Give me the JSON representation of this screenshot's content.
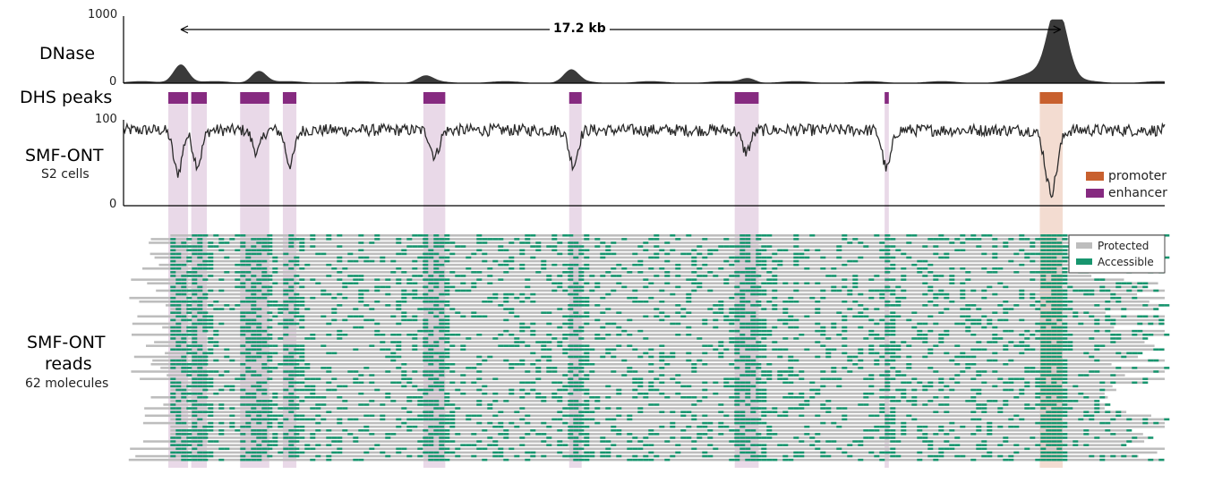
{
  "chart_data": {
    "type": "track-figure",
    "span_label": "17.2 kb",
    "tracks": {
      "dnase": {
        "label": "DNase",
        "ylim": [
          0,
          1000
        ],
        "tick_labels": [
          "1000",
          "0"
        ],
        "color": "#3a3a3a",
        "peaks": [
          {
            "x": 0.055,
            "h": 0.28
          },
          {
            "x": 0.13,
            "h": 0.18
          },
          {
            "x": 0.29,
            "h": 0.09
          },
          {
            "x": 0.43,
            "h": 0.18
          },
          {
            "x": 0.6,
            "h": 0.07
          },
          {
            "x": 0.89,
            "h": 0.25
          },
          {
            "x": 0.895,
            "h": 0.18
          },
          {
            "x": 0.9,
            "h": 0.7
          }
        ]
      },
      "dhs": {
        "label": "DHS peaks",
        "peaks": [
          {
            "start": 0.043,
            "end": 0.062,
            "type": "enhancer"
          },
          {
            "start": 0.065,
            "end": 0.08,
            "type": "enhancer"
          },
          {
            "start": 0.112,
            "end": 0.14,
            "type": "enhancer"
          },
          {
            "start": 0.153,
            "end": 0.166,
            "type": "enhancer"
          },
          {
            "start": 0.288,
            "end": 0.309,
            "type": "enhancer"
          },
          {
            "start": 0.428,
            "end": 0.44,
            "type": "enhancer"
          },
          {
            "start": 0.587,
            "end": 0.61,
            "type": "enhancer"
          },
          {
            "start": 0.731,
            "end": 0.735,
            "type": "enhancer"
          },
          {
            "start": 0.88,
            "end": 0.902,
            "type": "promoter"
          }
        ]
      },
      "smf": {
        "label": "SMF-ONT",
        "sublabel": "S2 cells",
        "ylim": [
          0,
          100
        ],
        "tick_labels": [
          "100",
          "0"
        ],
        "baseline": 88,
        "dips": [
          {
            "x": 0.052,
            "depth": 50
          },
          {
            "x": 0.071,
            "depth": 40
          },
          {
            "x": 0.128,
            "depth": 25
          },
          {
            "x": 0.16,
            "depth": 40
          },
          {
            "x": 0.299,
            "depth": 30
          },
          {
            "x": 0.432,
            "depth": 40
          },
          {
            "x": 0.598,
            "depth": 25
          },
          {
            "x": 0.733,
            "depth": 45
          },
          {
            "x": 0.891,
            "depth": 72
          }
        ],
        "legend": [
          {
            "label": "promoter",
            "color": "#c8602e"
          },
          {
            "label": "enhancer",
            "color": "#862a80"
          }
        ]
      },
      "reads": {
        "label_line1": "SMF-ONT",
        "label_line2": "reads",
        "sublabel": "62 molecules",
        "n_molecules": 62,
        "legend": [
          {
            "label": "Protected",
            "color": "#bdbdbd"
          },
          {
            "label": "Accessible",
            "color": "#17956e"
          }
        ]
      }
    }
  }
}
